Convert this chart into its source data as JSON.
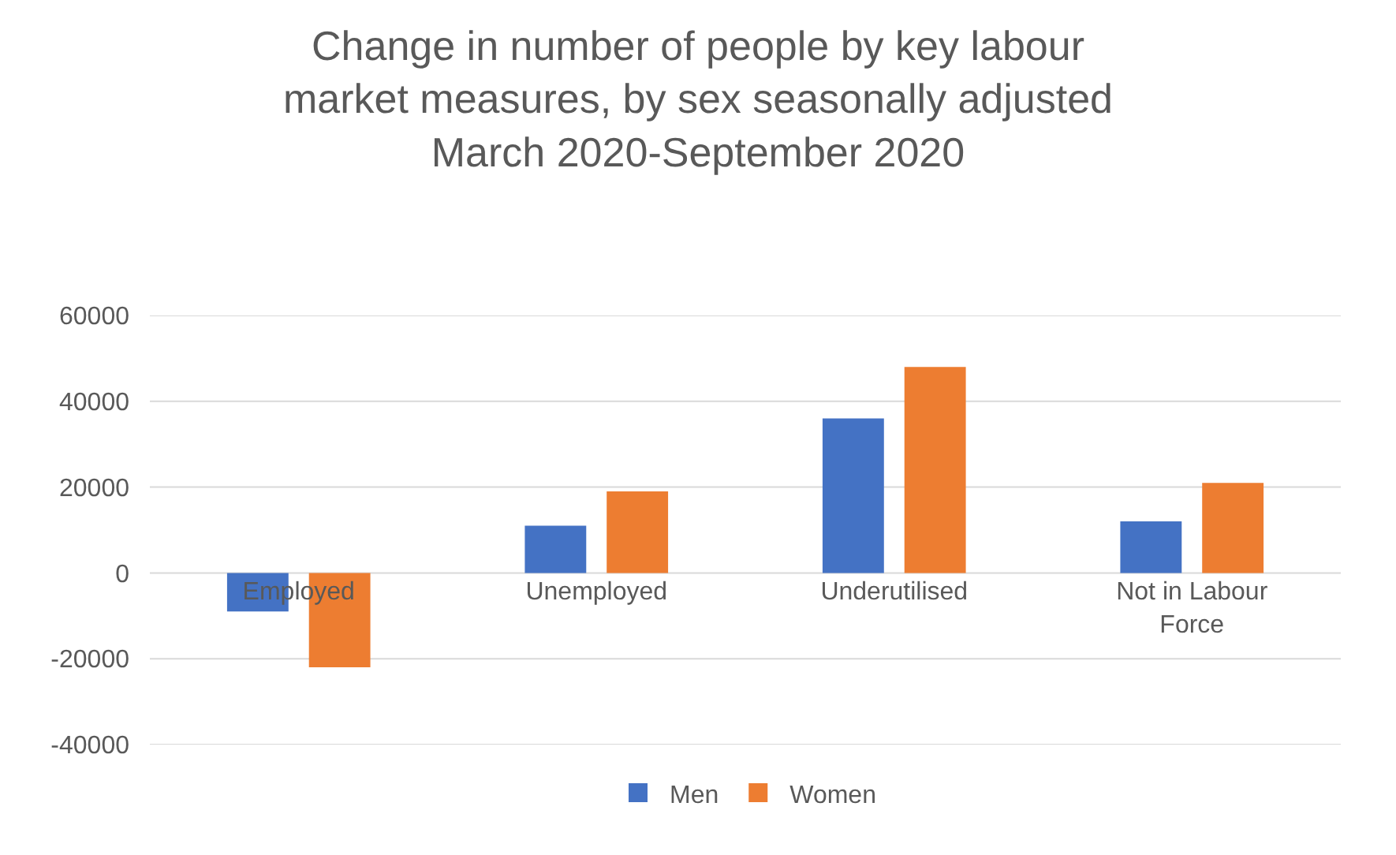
{
  "chart_data": {
    "type": "bar",
    "title": "Change in number of people by key labour market measures, by sex seasonally adjusted March 2020-September 2020",
    "categories": [
      "Employed",
      "Unemployed",
      "Underutilised",
      "Not in Labour Force"
    ],
    "series": [
      {
        "name": "Men",
        "color": "#4472c4",
        "values": [
          -9000,
          11000,
          36000,
          12000
        ]
      },
      {
        "name": "Women",
        "color": "#ed7d31",
        "values": [
          -22000,
          19000,
          48000,
          21000
        ]
      }
    ],
    "ylim": [
      -40000,
      60000
    ],
    "yticks": [
      -40000,
      -20000,
      0,
      20000,
      40000,
      60000
    ],
    "grid": "y",
    "legend": "bottom"
  }
}
